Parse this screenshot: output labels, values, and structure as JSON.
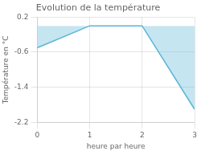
{
  "chart_data": {
    "type": "line",
    "title": "Evolution de la température",
    "xlabel": "heure par heure",
    "ylabel": "Température en °C",
    "x": [
      0,
      1,
      2,
      3
    ],
    "values": [
      -0.5,
      0.0,
      0.0,
      -1.9
    ],
    "color": "#5ab4d6",
    "xlim": [
      0,
      3
    ],
    "xticks": [
      0,
      1,
      2,
      3
    ],
    "ylim": [
      -2.2,
      0.2
    ],
    "yticks": [
      0.2,
      -0.6,
      -1.4,
      -2.2
    ],
    "grid": true
  }
}
